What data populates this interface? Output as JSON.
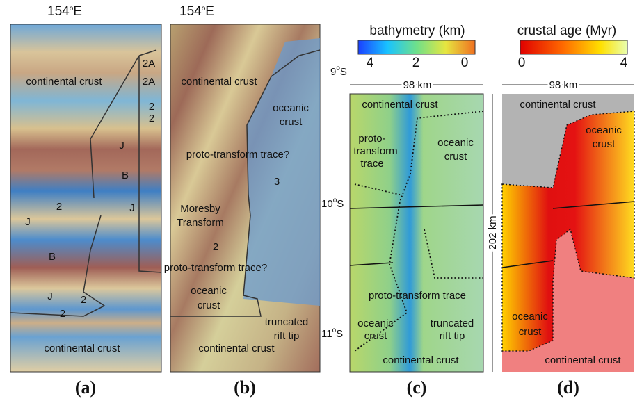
{
  "panels": [
    {
      "caption": "(a)",
      "lon_label": {
        "num": "154",
        "sup": "o",
        "dir": "E"
      },
      "labels": [
        "continental crust",
        "2A",
        "2A",
        "2",
        "2",
        "J",
        "B",
        "2",
        "J",
        "J",
        "B",
        "J",
        "2",
        "2",
        "continental crust"
      ]
    },
    {
      "caption": "(b)",
      "lon_label": {
        "num": "154",
        "sup": "o",
        "dir": "E"
      },
      "lat_labels": [
        {
          "num": "9",
          "sup": "o",
          "dir": "S"
        },
        {
          "num": "10",
          "sup": "o",
          "dir": "S"
        },
        {
          "num": "11",
          "sup": "o",
          "dir": "S"
        }
      ],
      "labels": [
        "continental crust",
        "oceanic",
        "crust",
        "proto-transform trace?",
        "3",
        "Moresby",
        "Transform",
        "2",
        "proto-transform trace?",
        "oceanic",
        "crust",
        "truncated",
        "rift tip",
        "continental crust"
      ]
    },
    {
      "caption": "(c)",
      "colorbar": {
        "title": "bathymetry (km)",
        "ticks": [
          4,
          2,
          0
        ]
      },
      "scale_bar": "98 km",
      "labels": [
        "continental crust",
        "proto-",
        "transform",
        "trace",
        "oceanic",
        "crust",
        "proto-transform trace",
        "oceanic",
        "crust",
        "truncated",
        "rift tip",
        "continental crust"
      ]
    },
    {
      "caption": "(d)",
      "colorbar": {
        "title": "crustal age (Myr)",
        "ticks": [
          0,
          4
        ]
      },
      "scale_bar": "98 km",
      "vertical_scale_bar": "202 km",
      "labels": [
        "continental crust",
        "oceanic",
        "crust",
        "oceanic",
        "crust",
        "continental crust"
      ]
    }
  ]
}
